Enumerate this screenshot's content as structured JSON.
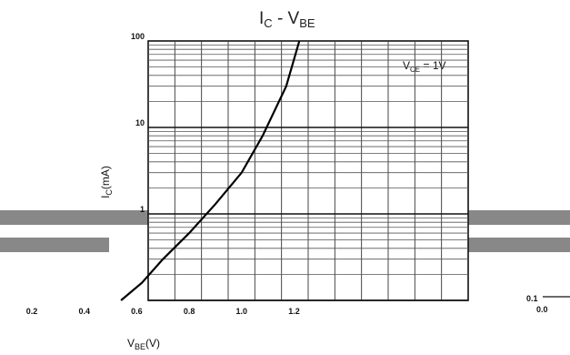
{
  "chart_data": {
    "type": "line",
    "title": {
      "main": "I",
      "main_sub": "C",
      "sep": " - V",
      "sep_sub": "BE"
    },
    "xlabel": {
      "main": "V",
      "sub": "BE",
      "unit": "(V)"
    },
    "ylabel": {
      "main": "I",
      "sub": "C",
      "unit": "(mA)"
    },
    "annotation": {
      "main": "V",
      "sub": "CE",
      "value": " = 1V"
    },
    "x_ticks": [
      "0.2",
      "0.4",
      "0.6",
      "0.8",
      "1.0",
      "1.2"
    ],
    "x_ticks_values": [
      0.2,
      0.4,
      0.6,
      0.8,
      1.0,
      1.2
    ],
    "y_ticks": [
      "100",
      "10",
      "1"
    ],
    "y_ticks_values": [
      100,
      10,
      1
    ],
    "extra_ticks": {
      "y_low": "0.1",
      "x_low": "0.0"
    },
    "xlim": [
      0.2,
      1.2
    ],
    "ylim": [
      0.1,
      100
    ],
    "y_scale": "log",
    "grid": true,
    "series": [
      {
        "x": [
          0.54,
          0.62,
          0.7,
          0.8,
          0.9,
          1.0,
          1.08,
          1.17,
          1.22
        ],
        "y": [
          0.1,
          0.16,
          0.3,
          0.6,
          1.3,
          3.0,
          8.0,
          30,
          100
        ]
      }
    ]
  }
}
